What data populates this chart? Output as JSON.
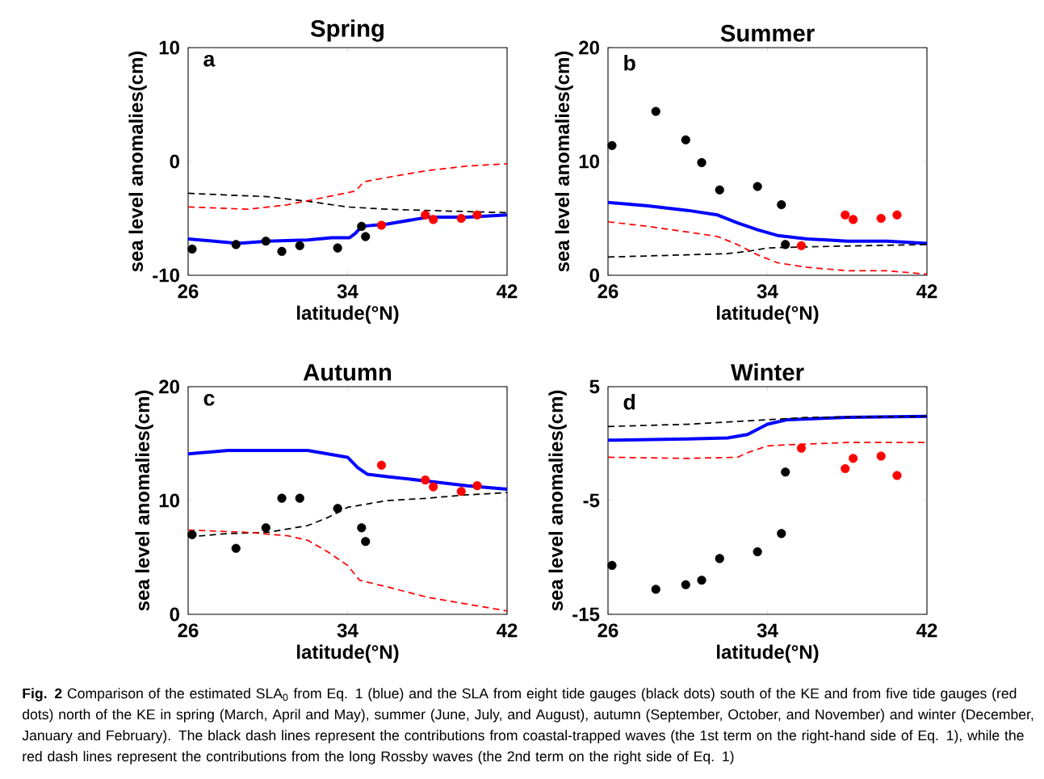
{
  "chart_data": [
    {
      "type": "line",
      "title": "Spring",
      "xlabel": "latitude(°N)",
      "ylabel": "sea level anomalies(cm)",
      "xlim": [
        26,
        42
      ],
      "ylim": [
        -10,
        10
      ],
      "xticks": [
        26,
        34,
        42
      ],
      "yticks": [
        -10,
        0,
        10
      ],
      "annotations": [
        "a"
      ],
      "series": [
        {
          "type": "line",
          "color": "#0000ff",
          "line_style": "solid",
          "x": [
            26,
            28.5,
            30,
            32,
            33.2,
            34.1,
            34.4,
            34.7,
            36,
            38,
            40,
            42
          ],
          "values": [
            -6.8,
            -7.2,
            -7.0,
            -6.9,
            -6.7,
            -6.7,
            -6.3,
            -5.7,
            -5.5,
            -4.9,
            -4.9,
            -4.7
          ]
        },
        {
          "type": "line",
          "color": "#000000",
          "line_style": "dashed",
          "x": [
            26,
            30,
            32,
            34,
            36,
            42
          ],
          "values": [
            -2.8,
            -3.1,
            -3.5,
            -4.0,
            -4.2,
            -4.5
          ]
        },
        {
          "type": "line",
          "color": "#ff0000",
          "line_style": "dashed",
          "x": [
            26,
            29,
            31,
            33,
            34.4,
            34.8,
            36,
            38,
            40,
            42
          ],
          "values": [
            -4.0,
            -4.2,
            -3.8,
            -3.1,
            -2.6,
            -1.8,
            -1.4,
            -0.8,
            -0.4,
            -0.2
          ]
        },
        {
          "type": "scatter",
          "color": "#000000",
          "marker": "circle",
          "x": [
            26.2,
            28.4,
            29.9,
            30.7,
            31.6,
            33.5,
            34.7,
            34.9
          ],
          "values": [
            -7.7,
            -7.3,
            -7.0,
            -7.9,
            -7.4,
            -7.6,
            -5.7,
            -6.6
          ]
        },
        {
          "type": "scatter",
          "color": "#ff0000",
          "marker": "circle",
          "x": [
            35.7,
            37.9,
            38.3,
            39.7,
            40.5
          ],
          "values": [
            -5.6,
            -4.7,
            -5.1,
            -5.0,
            -4.7
          ]
        }
      ]
    },
    {
      "type": "line",
      "title": "Summer",
      "xlabel": "latitude(°N)",
      "ylabel": "sea level anomalies(cm)",
      "xlim": [
        26,
        42
      ],
      "ylim": [
        0,
        20
      ],
      "xticks": [
        26,
        34,
        42
      ],
      "yticks": [
        0,
        10,
        20
      ],
      "annotations": [
        "b"
      ],
      "series": [
        {
          "type": "line",
          "color": "#0000ff",
          "line_style": "solid",
          "x": [
            26,
            28,
            30,
            31.5,
            32.5,
            33.5,
            34.5,
            36,
            38,
            40,
            42
          ],
          "values": [
            6.4,
            6.1,
            5.7,
            5.3,
            4.6,
            4.0,
            3.5,
            3.2,
            3.0,
            3.0,
            2.8
          ]
        },
        {
          "type": "line",
          "color": "#000000",
          "line_style": "dashed",
          "x": [
            26,
            30,
            32,
            33,
            34,
            36,
            42
          ],
          "values": [
            1.6,
            1.8,
            1.9,
            2.1,
            2.4,
            2.5,
            2.7
          ]
        },
        {
          "type": "line",
          "color": "#ff0000",
          "line_style": "dashed",
          "x": [
            26,
            28,
            30,
            31.5,
            32.5,
            33.5,
            34.5,
            36,
            38,
            40,
            42
          ],
          "values": [
            4.7,
            4.3,
            3.8,
            3.4,
            2.7,
            1.8,
            1.1,
            0.7,
            0.4,
            0.4,
            0.1
          ]
        },
        {
          "type": "scatter",
          "color": "#000000",
          "marker": "circle",
          "x": [
            26.2,
            28.4,
            29.9,
            30.7,
            31.6,
            33.5,
            34.7,
            34.9
          ],
          "values": [
            11.4,
            14.4,
            11.9,
            9.9,
            7.5,
            7.8,
            6.2,
            2.7
          ]
        },
        {
          "type": "scatter",
          "color": "#ff0000",
          "marker": "circle",
          "x": [
            35.7,
            37.9,
            38.3,
            39.7,
            40.5
          ],
          "values": [
            2.6,
            5.3,
            4.9,
            5.0,
            5.3
          ]
        }
      ]
    },
    {
      "type": "line",
      "title": "Autumn",
      "xlabel": "latitude(°N)",
      "ylabel": "sea level anomalies(cm)",
      "xlim": [
        26,
        42
      ],
      "ylim": [
        0,
        20
      ],
      "xticks": [
        26,
        34,
        42
      ],
      "yticks": [
        0,
        10,
        20
      ],
      "annotations": [
        "c"
      ],
      "series": [
        {
          "type": "line",
          "color": "#0000ff",
          "line_style": "solid",
          "x": [
            26,
            28,
            30,
            32,
            33,
            34,
            34.5,
            35,
            36,
            38,
            40,
            42
          ],
          "values": [
            14.1,
            14.4,
            14.4,
            14.4,
            14.1,
            13.8,
            12.9,
            12.3,
            12.1,
            11.7,
            11.3,
            11.0
          ]
        },
        {
          "type": "line",
          "color": "#000000",
          "line_style": "dashed",
          "x": [
            26,
            28,
            30,
            32,
            33,
            34,
            36,
            38,
            40,
            42
          ],
          "values": [
            6.8,
            7.1,
            7.2,
            7.8,
            8.5,
            9.4,
            10.0,
            10.2,
            10.5,
            10.7
          ]
        },
        {
          "type": "line",
          "color": "#ff0000",
          "line_style": "dashed",
          "x": [
            26,
            29,
            31,
            32,
            33,
            34,
            34.6,
            36,
            38,
            40,
            42
          ],
          "values": [
            7.4,
            7.2,
            6.9,
            6.5,
            5.5,
            4.3,
            3.0,
            2.4,
            1.5,
            0.9,
            0.3
          ]
        },
        {
          "type": "scatter",
          "color": "#000000",
          "marker": "circle",
          "x": [
            26.2,
            28.4,
            29.9,
            30.7,
            31.6,
            33.5,
            34.7,
            34.9
          ],
          "values": [
            7.0,
            5.8,
            7.6,
            10.2,
            10.2,
            9.3,
            7.6,
            6.4
          ]
        },
        {
          "type": "scatter",
          "color": "#ff0000",
          "marker": "circle",
          "x": [
            35.7,
            37.9,
            38.3,
            39.7,
            40.5
          ],
          "values": [
            13.1,
            11.8,
            11.2,
            10.8,
            11.3
          ]
        }
      ]
    },
    {
      "type": "line",
      "title": "Winter",
      "xlabel": "latitude(°N)",
      "ylabel": "sea level anomalies(cm)",
      "xlim": [
        26,
        42
      ],
      "ylim": [
        -15,
        5
      ],
      "xticks": [
        26,
        34,
        42
      ],
      "yticks": [
        -15,
        -5,
        5
      ],
      "annotations": [
        "d"
      ],
      "series": [
        {
          "type": "line",
          "color": "#0000ff",
          "line_style": "solid",
          "x": [
            26,
            30,
            32,
            33,
            34,
            35,
            38,
            42
          ],
          "values": [
            0.3,
            0.4,
            0.5,
            0.8,
            1.7,
            2.1,
            2.3,
            2.4
          ]
        },
        {
          "type": "line",
          "color": "#000000",
          "line_style": "dashed",
          "x": [
            26,
            30,
            33,
            34,
            36,
            42
          ],
          "values": [
            1.5,
            1.7,
            2.0,
            2.1,
            2.3,
            2.4
          ]
        },
        {
          "type": "line",
          "color": "#ff0000",
          "line_style": "dashed",
          "x": [
            26,
            30,
            32.5,
            33,
            34,
            35,
            38,
            42
          ],
          "values": [
            -1.2,
            -1.3,
            -1.2,
            -0.8,
            -0.2,
            -0.1,
            0.1,
            0.1
          ]
        },
        {
          "type": "scatter",
          "color": "#000000",
          "marker": "circle",
          "x": [
            26.2,
            28.4,
            29.9,
            30.7,
            31.6,
            33.5,
            34.7,
            34.9
          ],
          "values": [
            -10.7,
            -12.8,
            -12.4,
            -12.0,
            -10.1,
            -9.5,
            -7.9,
            -2.5
          ]
        },
        {
          "type": "scatter",
          "color": "#ff0000",
          "marker": "circle",
          "x": [
            35.7,
            37.9,
            38.3,
            39.7,
            40.5
          ],
          "values": [
            -0.4,
            -2.2,
            -1.3,
            -1.1,
            -2.8
          ]
        }
      ]
    },
    {
      "type": "other",
      "annotations": [
        "**Fig. 2** Comparison of the estimated SLA$_{0}$ from Eq. 1 (blue) and the SLA from eight tide gauges (black dots) south of the KE and from five tide gauges (red dots) north of the KE in spring (March, April and May), summer (June, July, and August), autumn (September, October, and November) and winter (December, January and February). The black dash lines represent the contributions from coastal-trapped waves (the 1st term on the right-hand side of Eq. 1), while the red dash lines represent the contributions from the long Rossby waves (the 2nd term on the right side of Eq. 1)"
      ]
    }
  ]
}
